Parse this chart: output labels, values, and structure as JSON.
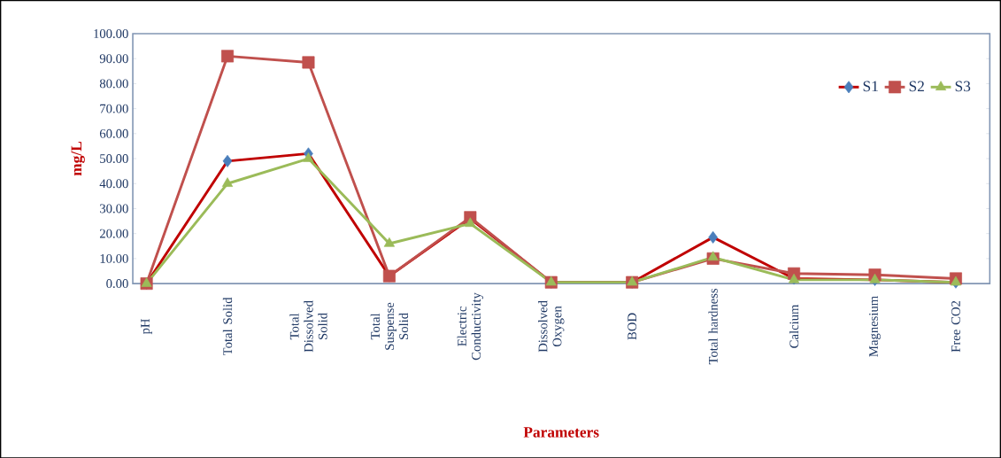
{
  "chart_data": {
    "type": "line",
    "xlabel": "Parameters",
    "ylabel": "mg/L",
    "categories": [
      "pH",
      "Total Solid",
      "Total Dissolved Solid",
      "Total Suspense Solid",
      "Electric Conductivity",
      "Dissolved Oxygen",
      "BOD",
      "Total hardness",
      "Calcium",
      "Magnesium",
      "Free CO2"
    ],
    "series": [
      {
        "name": "S1",
        "color": "#c00000",
        "marker": "diamond",
        "values": [
          0,
          49,
          52,
          3,
          26,
          0.5,
          0.5,
          18.5,
          2,
          1.5,
          0.5
        ]
      },
      {
        "name": "S2",
        "color": "#c0504d",
        "marker": "square",
        "values": [
          0,
          91,
          88.5,
          3,
          26.5,
          0.5,
          0.5,
          10,
          4,
          3.5,
          2
        ]
      },
      {
        "name": "S3",
        "color": "#9bbb59",
        "marker": "triangle",
        "values": [
          0,
          40,
          50,
          16,
          24,
          0.5,
          0.5,
          10.5,
          1.5,
          1.5,
          0.5
        ]
      }
    ],
    "ylim": [
      0,
      100
    ],
    "yticks": [
      {
        "value": 0,
        "label": "0.00"
      },
      {
        "value": 10,
        "label": "10.00"
      },
      {
        "value": 20,
        "label": "20.00"
      },
      {
        "value": 30,
        "label": "30.00"
      },
      {
        "value": 40,
        "label": "40.00"
      },
      {
        "value": 50,
        "label": "50.00"
      },
      {
        "value": 60,
        "label": "60.00"
      },
      {
        "value": 70,
        "label": "70.00"
      },
      {
        "value": 80,
        "label": "80.00"
      },
      {
        "value": 90,
        "label": "90.00"
      },
      {
        "value": 100,
        "label": "100.00"
      }
    ],
    "legend": "top right",
    "grid": false
  }
}
